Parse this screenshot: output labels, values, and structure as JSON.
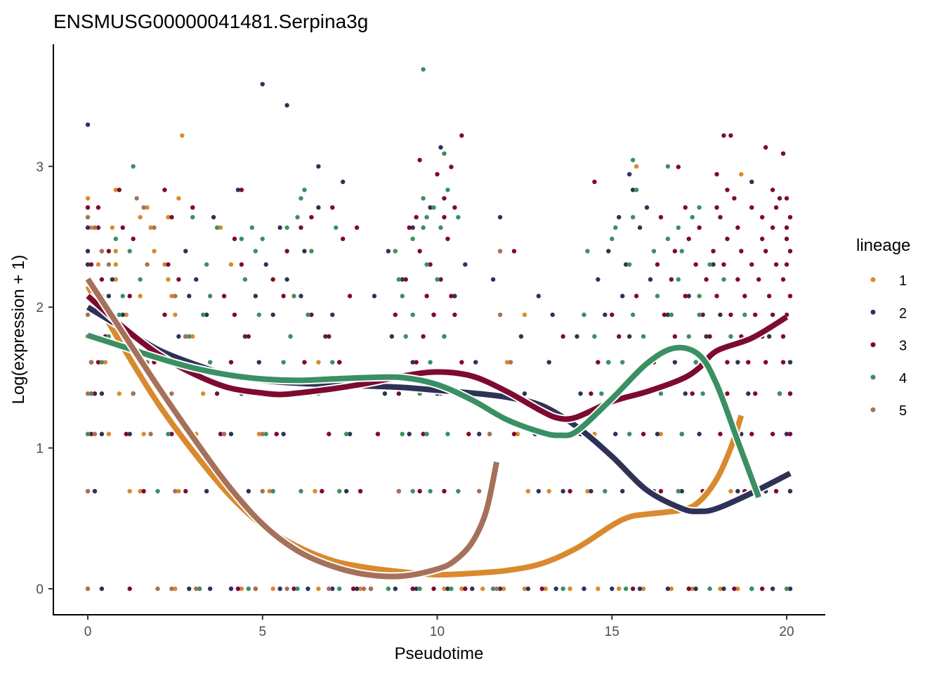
{
  "chart_data": {
    "type": "scatter",
    "title": "ENSMUSG00000041481.Serpina3g",
    "xlabel": "Pseudotime",
    "ylabel": "Log(expression + 1)",
    "xlim": [
      -1,
      21
    ],
    "ylim": [
      -0.18,
      3.87
    ],
    "xticks": [
      0,
      5,
      10,
      15,
      20
    ],
    "yticks": [
      0,
      1,
      2,
      3
    ],
    "grid": false,
    "legend": {
      "title": "lineage",
      "placement": "right",
      "entries": [
        "1",
        "2",
        "3",
        "4",
        "5"
      ]
    },
    "colors": {
      "1": "#D98A2E",
      "2": "#2E3257",
      "3": "#7D0A30",
      "4": "#3A9063",
      "5": "#A5715A"
    },
    "series": [
      {
        "name": "1",
        "points_by_level": {
          "0": [
            0,
            2.5,
            3.2,
            4.4,
            5.3,
            6.6,
            7.8,
            10.2,
            10.7,
            11.3,
            11.9,
            12.5,
            13.1,
            13.8,
            14.6,
            15.2,
            15.9,
            16.7,
            17.3,
            18.1,
            18.6
          ],
          "0.693": [
            0.2,
            1.2,
            1.5,
            2.6,
            5.2,
            6.5,
            12.6,
            13.2,
            14.3,
            16.0,
            17.6,
            18.4
          ],
          "1.099": [
            0.6,
            1.6,
            3.1,
            4.9,
            8.3,
            12.3,
            14.5,
            16.4,
            18.5
          ],
          "1.386": [
            0.1,
            0.9,
            2.2,
            3.3
          ],
          "1.609": [
            0.1,
            0.5,
            2.7,
            6.6,
            12.0
          ],
          "1.792": [
            0.3,
            1.0,
            3.0,
            5.8
          ],
          "1.946": [
            0.4,
            1.1,
            2.5,
            12.5
          ],
          "2.079": [
            0.2,
            1.5,
            2.4
          ],
          "2.197": [
            0.8,
            2.3
          ],
          "2.303": [
            0.3,
            0.8,
            2.2,
            4.1
          ],
          "2.398": [
            0.4,
            0.8,
            1.9
          ],
          "2.565": [
            0.1,
            0.7,
            1.8,
            3.8
          ],
          "2.639": [
            1.5,
            2.3
          ],
          "2.708": [
            1.7
          ],
          "2.773": [
            0.0,
            2.6
          ],
          "2.833": [
            0.8,
            15.6
          ],
          "2.944": [
            18.7
          ],
          "3.0": [
            15.7
          ],
          "3.219": [
            2.7
          ]
        }
      },
      {
        "name": "2",
        "points_by_level": {
          "0": [
            0.4,
            2.9,
            3.5,
            4.1,
            4.8,
            5.5,
            6.3,
            7.0,
            7.7,
            8.8,
            9.4,
            10.3,
            11.0,
            11.8,
            12.6,
            13.4,
            14.2,
            15.0,
            15.8,
            16.6,
            17.4,
            18.2,
            19.0,
            19.6,
            20.1
          ],
          "0.693": [
            0.2,
            3.4,
            4.6,
            7.4,
            8.9,
            12.9,
            13.6,
            14.4,
            15.3,
            16.2,
            17.0,
            17.8,
            18.6,
            19.4,
            20.1
          ],
          "1.099": [
            0.4,
            1.2,
            4.1,
            5.6,
            7.5,
            9.2,
            11.2,
            12.8,
            13.9,
            15.1,
            16.3,
            17.5,
            18.7,
            20.0
          ],
          "1.386": [
            0.4,
            2.1,
            4.4,
            6.2,
            8.5,
            10.0,
            12.5,
            14.1,
            15.7,
            17.1,
            18.9,
            20.1
          ],
          "1.609": [
            0.1,
            2.3,
            4.9,
            7.2,
            9.3,
            11.1,
            13.2,
            14.9,
            16.8,
            18.6,
            20.1
          ],
          "1.792": [
            0.3,
            2.6,
            4.5,
            6.8,
            8.7,
            10.2,
            12.4,
            14.0,
            15.5,
            17.7,
            19.5
          ],
          "1.946": [
            1.0,
            3.4,
            5.3,
            7.0,
            9.9,
            13.3,
            14.8,
            16.6,
            18.1
          ],
          "2.079": [
            0.6,
            2.9,
            4.8,
            6.1,
            8.2,
            10.5,
            12.9,
            15.3,
            17.2
          ],
          "2.197": [
            0.7,
            3.1,
            5.7,
            9.0,
            11.6,
            14.6,
            16.1
          ],
          "2.303": [
            0.0,
            5.1,
            10.8,
            15.4,
            17.9
          ],
          "2.398": [
            0.0,
            2.8,
            6.2,
            8.6,
            14.9
          ],
          "2.565": [
            0.0,
            5.5,
            9.3,
            15.8
          ],
          "2.639": [
            3.6,
            11.8,
            15.2
          ],
          "2.708": [
            6.6,
            9.8,
            16.0
          ],
          "2.833": [
            4.3,
            15.6
          ],
          "2.89": [
            7.3,
            19.0
          ],
          "2.944": [
            15.5
          ],
          "3.0": [
            6.6
          ],
          "3.135": [
            10.1
          ],
          "3.296": [
            0.0
          ],
          "3.434": [
            5.7
          ],
          "3.584": [
            5.0
          ]
        }
      },
      {
        "name": "3",
        "points_by_level": {
          "0": [
            1.2,
            4.3,
            5.9,
            7.6,
            8.1,
            9.3,
            9.9,
            10.8,
            13.0,
            15.6,
            17.2,
            18.5,
            19.3
          ],
          "0.693": [
            1.6,
            2.8,
            4.0,
            6.7,
            7.8,
            9.5,
            10.2,
            13.8,
            16.4,
            17.6,
            18.8,
            19.7
          ],
          "1.099": [
            0.1,
            1.1,
            2.4,
            3.8,
            5.4,
            6.9,
            8.3,
            9.6,
            10.9,
            12.2,
            14.1,
            15.9,
            17.0,
            18.1,
            19.0,
            19.6,
            20.1
          ],
          "1.386": [
            0.2,
            1.3,
            3.7,
            5.0,
            6.4,
            8.9,
            10.6,
            14.4,
            16.0,
            17.3,
            18.3,
            19.1,
            19.8,
            20.1
          ],
          "1.609": [
            0.3,
            1.9,
            4.1,
            6.2,
            7.2,
            9.4,
            10.7,
            14.6,
            16.2,
            17.4,
            18.3,
            18.9,
            19.4,
            19.9
          ],
          "1.792": [
            0.5,
            2.8,
            4.6,
            6.9,
            9.6,
            13.6,
            15.2,
            16.8,
            17.8,
            18.7,
            19.3,
            19.9
          ],
          "1.946": [
            0.7,
            2.2,
            4.2,
            6.4,
            8.8,
            9.9,
            10.5,
            15.0,
            16.5,
            17.6,
            18.4,
            19.1,
            19.6,
            20.0
          ],
          "2.079": [
            1.2,
            3.9,
            5.6,
            7.5,
            9.7,
            10.4,
            15.7,
            17.1,
            18.0,
            18.8,
            19.5,
            20.1
          ],
          "2.197": [
            0.4,
            2.6,
            5.3,
            9.1,
            10.1,
            16.7,
            17.7,
            18.6,
            19.2,
            19.9
          ],
          "2.303": [
            0.1,
            2.3,
            4.4,
            9.8,
            16.3,
            17.4,
            18.2,
            19.0,
            19.7,
            20.0
          ],
          "2.398": [
            0.6,
            5.7,
            9.5,
            12.2,
            16.8,
            17.9,
            18.7,
            19.4,
            20.1
          ],
          "2.485": [
            1.3,
            4.2,
            7.3,
            10.3,
            17.2,
            18.3,
            19.3,
            20.0
          ],
          "2.565": [
            0.3,
            1.0,
            6.1,
            7.7,
            9.2,
            17.5,
            18.6,
            19.6,
            20.0
          ],
          "2.639": [
            2.4,
            6.4,
            9.4,
            10.2,
            16.4,
            18.1,
            19.3,
            20.1
          ],
          "2.708": [
            0.0,
            0.3,
            3.0,
            7.0,
            10.5,
            17.1,
            18.0,
            19.0,
            19.7
          ],
          "2.773": [
            10.2,
            18.5,
            19.8,
            20.0
          ],
          "2.833": [
            0.9,
            2.2,
            4.4,
            18.3,
            19.6
          ],
          "2.89": [
            14.5
          ],
          "2.944": [
            10.0,
            18.0
          ],
          "2.996": [
            10.4,
            16.9
          ],
          "3.045": [
            9.5
          ],
          "3.091": [
            19.9
          ],
          "3.135": [
            19.4
          ],
          "3.219": [
            10.7,
            18.2,
            18.4
          ]
        }
      },
      {
        "name": "4",
        "points_by_level": {
          "0": [
            3.2,
            4.6,
            6.0,
            7.2,
            8.6,
            9.5,
            10.4,
            11.6,
            13.6,
            15.4,
            17.8,
            19.0,
            20.0
          ],
          "0.693": [
            0.0,
            2.0,
            5.3,
            6.1,
            7.2,
            9.3,
            9.8,
            10.6,
            14.8,
            16.9
          ],
          "1.099": [
            0.0,
            2.3,
            5.1,
            7.4,
            9.0,
            9.7,
            10.3,
            11.5,
            13.4,
            15.5,
            17.0
          ],
          "1.386": [
            0.1,
            2.1,
            4.6,
            6.6,
            9.5,
            10.1,
            14.7,
            16.4,
            17.6,
            19.8
          ],
          "1.609": [
            0.4,
            3.5,
            5.6,
            7.0,
            9.8,
            14.9,
            15.3,
            17.4
          ],
          "1.792": [
            0.6,
            2.9,
            5.8,
            9.1,
            10.2,
            14.5,
            15.9,
            17.2,
            18.4
          ],
          "1.946": [
            0.9,
            3.3,
            4.9,
            6.3,
            9.3,
            14.2,
            15.6,
            16.7,
            17.5,
            18.8
          ],
          "2.079": [
            1.0,
            3.5,
            5.9,
            9.0,
            16.3,
            17.5
          ],
          "2.197": [
            1.5,
            4.5,
            8.9,
            10.0,
            16.9,
            18.2
          ],
          "2.303": [
            3.4,
            9.7,
            15.5,
            17.8
          ],
          "2.398": [
            1.2,
            4.8,
            6.4,
            8.8,
            14.3,
            16.2,
            17.0
          ],
          "2.485": [
            0.8,
            4.4,
            5.0,
            9.3,
            15.0,
            16.6
          ],
          "2.565": [
            3.7,
            4.7,
            5.7,
            7.1,
            9.6,
            10.1,
            15.1,
            16.9
          ],
          "2.639": [
            3.0,
            6.0,
            9.7,
            10.6,
            15.6,
            17.3
          ],
          "2.708": [
            9.9,
            17.5
          ],
          "2.773": [
            6.1,
            9.6
          ],
          "2.833": [
            6.2,
            10.3,
            15.7
          ],
          "3.0": [
            1.3,
            16.6
          ],
          "3.045": [
            15.6
          ],
          "3.091": [
            10.2
          ],
          "3.689": [
            9.6
          ]
        }
      },
      {
        "name": "5",
        "points_by_level": {
          "0": [
            0.0,
            2.0,
            2.4,
            3.1,
            4.8,
            5.7,
            6.9,
            7.9,
            8.1,
            11.7
          ],
          "0.693": [
            0.0,
            2.5,
            5.0,
            8.9,
            11.2
          ],
          "1.099": [
            0.2,
            1.8,
            3.9,
            5.0,
            11.5
          ],
          "1.386": [
            0.0,
            1.3,
            2.4,
            12.0
          ],
          "1.609": [
            0.1,
            1.7,
            12.1
          ],
          "1.792": [
            0.0,
            2.8
          ],
          "1.946": [
            0.0,
            11.8
          ],
          "2.079": [
            0.4,
            2.5
          ],
          "2.303": [
            0.6,
            1.7
          ],
          "2.398": [
            0.4,
            11.8
          ],
          "2.565": [
            0.2,
            1.9
          ],
          "2.639": [
            0.0
          ],
          "2.708": [
            1.6
          ],
          "2.773": [
            1.4
          ]
        }
      }
    ],
    "curves": [
      {
        "name": "1",
        "x": [
          0,
          1,
          2,
          3,
          4,
          5,
          6,
          7,
          8,
          9,
          10,
          11,
          12,
          13,
          14,
          15,
          15.5,
          16,
          17,
          17.5,
          18,
          18.4,
          18.7
        ],
        "y": [
          2.15,
          1.72,
          1.32,
          0.98,
          0.68,
          0.45,
          0.3,
          0.2,
          0.15,
          0.12,
          0.1,
          0.11,
          0.13,
          0.18,
          0.29,
          0.45,
          0.51,
          0.53,
          0.56,
          0.62,
          0.78,
          1.0,
          1.23
        ]
      },
      {
        "name": "2",
        "x": [
          0,
          1,
          2,
          3,
          4,
          5,
          6,
          7,
          8,
          9,
          10,
          11,
          12,
          13,
          14,
          15,
          16,
          17,
          17.5,
          18,
          19,
          20.1
        ],
        "y": [
          2.0,
          1.85,
          1.7,
          1.6,
          1.52,
          1.48,
          1.46,
          1.45,
          1.44,
          1.43,
          1.41,
          1.39,
          1.36,
          1.3,
          1.15,
          0.94,
          0.7,
          0.57,
          0.55,
          0.57,
          0.68,
          0.82
        ]
      },
      {
        "name": "3",
        "x": [
          0,
          1,
          2,
          3,
          4,
          5,
          5.5,
          6,
          7,
          8,
          9,
          10,
          11,
          12,
          13,
          13.5,
          14,
          15,
          16,
          17,
          17.5,
          18,
          19,
          20
        ],
        "y": [
          2.08,
          1.86,
          1.67,
          1.53,
          1.43,
          1.39,
          1.38,
          1.39,
          1.42,
          1.46,
          1.51,
          1.54,
          1.51,
          1.4,
          1.26,
          1.21,
          1.22,
          1.33,
          1.4,
          1.49,
          1.57,
          1.69,
          1.78,
          1.93
        ]
      },
      {
        "name": "4",
        "x": [
          0,
          1,
          2,
          3,
          4,
          5,
          6,
          7,
          8,
          9,
          10,
          11,
          12,
          13,
          13.5,
          14,
          15,
          16,
          16.8,
          17.5,
          18,
          18.6,
          19.2
        ],
        "y": [
          1.8,
          1.72,
          1.64,
          1.57,
          1.52,
          1.49,
          1.48,
          1.49,
          1.5,
          1.5,
          1.45,
          1.34,
          1.2,
          1.11,
          1.09,
          1.12,
          1.35,
          1.6,
          1.71,
          1.66,
          1.45,
          1.05,
          0.65
        ]
      },
      {
        "name": "5",
        "x": [
          0,
          1,
          2,
          3,
          4,
          5,
          6,
          7,
          8,
          9,
          10,
          10.5,
          11,
          11.4,
          11.7
        ],
        "y": [
          2.2,
          1.82,
          1.44,
          1.08,
          0.74,
          0.46,
          0.27,
          0.16,
          0.1,
          0.09,
          0.14,
          0.2,
          0.33,
          0.55,
          0.9
        ]
      }
    ]
  }
}
